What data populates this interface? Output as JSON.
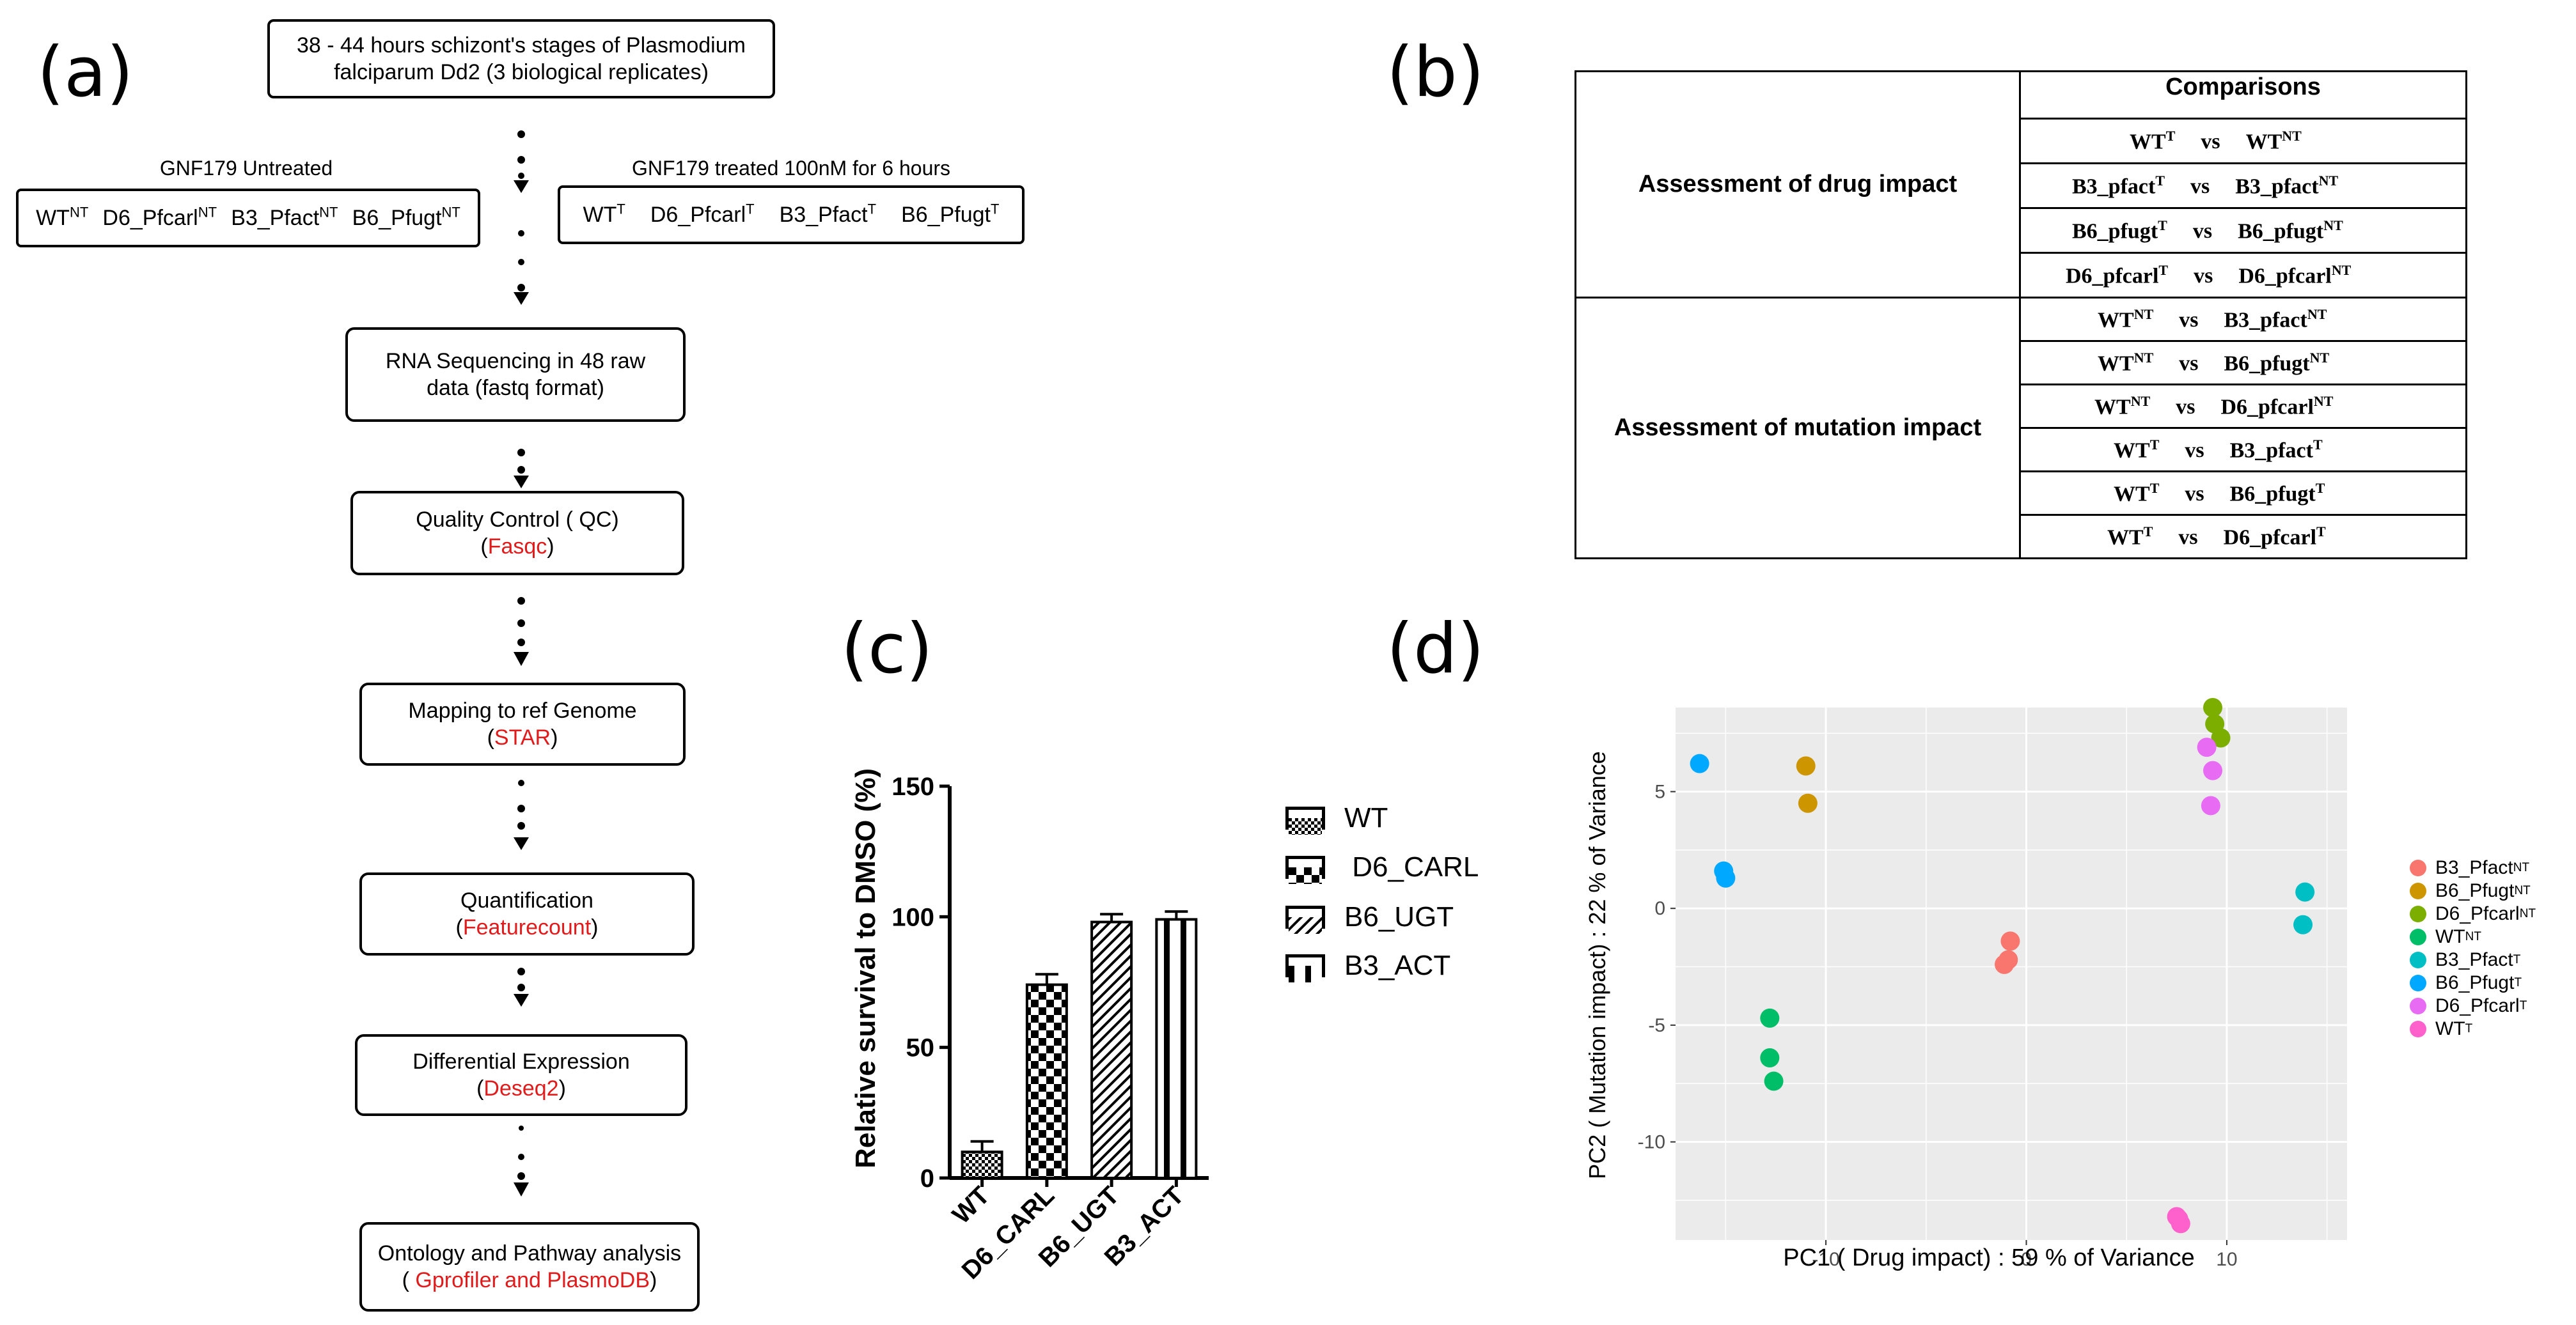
{
  "panels": {
    "a": "(a)",
    "b": "(b)",
    "c": "(c)",
    "d": "(d)"
  },
  "flow": {
    "start_line1": "38 - 44 hours schizont's stages of Plasmodium",
    "start_line2": "falciparum Dd2 (3 biological replicates)",
    "untreated_title": "GNF179 Untreated",
    "treated_title": "GNF179 treated 100nM for 6 hours",
    "untreated": [
      {
        "base": "WT",
        "sup": "NT"
      },
      {
        "base": "D6_Pfcarl",
        "sup": "NT"
      },
      {
        "base": "B3_Pfact",
        "sup": "NT"
      },
      {
        "base": "B6_Pfugt",
        "sup": "NT"
      }
    ],
    "treated": [
      {
        "base": "WT",
        "sup": "T"
      },
      {
        "base": "D6_Pfcarl",
        "sup": "T"
      },
      {
        "base": "B3_Pfact",
        "sup": "T"
      },
      {
        "base": "B6_Pfugt",
        "sup": "T"
      }
    ],
    "seq_line1": "RNA Sequencing in 48 raw",
    "seq_line2": "data (fastq format)",
    "qc_label": "Quality Control ( QC)",
    "qc_tool": "Fasqc",
    "map_label": "Mapping to ref Genome",
    "map_tool": "STAR",
    "quant_label": "Quantification",
    "quant_tool": "Featurecount",
    "de_label": "Differential Expression",
    "de_tool": "Deseq2",
    "onto_label": "Ontology and Pathway analysis",
    "onto_tool": "Gprofiler and PlasmoDB",
    "open_paren": "(",
    "open_paren_sp": "( ",
    "close_paren": ")"
  },
  "comparisons": {
    "header": "Comparisons",
    "vs": "vs",
    "drug_title": "Assessment of drug impact",
    "mutation_title": "Assessment of mutation impact",
    "drug": [
      {
        "a": "WT",
        "as": "T",
        "b": "WT",
        "bs": "NT"
      },
      {
        "a": "B3_pfact",
        "as": "T",
        "b": "B3_pfact",
        "bs": "NT"
      },
      {
        "a": "B6_pfugt",
        "as": "T",
        "b": "B6_pfugt",
        "bs": "NT"
      },
      {
        "a": "D6_pfcarl",
        "as": "T",
        "b": "D6_pfcarl",
        "bs": "NT"
      }
    ],
    "mutation": [
      {
        "a": "WT",
        "as": "NT",
        "b": "B3_pfact",
        "bs": "NT"
      },
      {
        "a": "WT",
        "as": "NT",
        "b": "B6_pfugt",
        "bs": "NT"
      },
      {
        "a": "WT",
        "as": "NT",
        "b": "D6_pfcarl",
        "bs": "NT"
      },
      {
        "a": "WT",
        "as": "T",
        "b": "B3_pfact",
        "bs": "T"
      },
      {
        "a": "WT",
        "as": "T",
        "b": "B6_pfugt",
        "bs": "T"
      },
      {
        "a": "WT",
        "as": "T",
        "b": "D6_pfcarl",
        "bs": "T"
      }
    ]
  },
  "chart_data": [
    {
      "type": "bar",
      "ylabel": "Relative survival to DMSO (%)",
      "categories": [
        "WT",
        "D6_CARL",
        "B6_UGT",
        "B3_ACT"
      ],
      "values": [
        10,
        74,
        98,
        99
      ],
      "errors": [
        4,
        4,
        3,
        3
      ],
      "ylim": [
        0,
        150
      ],
      "yticks": [
        0,
        50,
        100,
        150
      ],
      "legend": [
        "WT",
        " D6_CARL",
        "B6_UGT",
        "B3_ACT"
      ]
    },
    {
      "type": "scatter",
      "xlabel": "PC1 ( Drug impact) : 59 % of Variance",
      "ylabel": "PC2 ( Mutation impact) : 22 % of Variance",
      "xticks": [
        -10,
        0,
        10
      ],
      "yticks": [
        5,
        0,
        -5,
        -10
      ],
      "xlim": [
        -17.5,
        16
      ],
      "ylim": [
        -14.2,
        8.6
      ],
      "series": [
        {
          "name": "B3_Pfact",
          "sup": "NT",
          "color": "#F8766D",
          "points": [
            [
              -0.8,
              -1.4
            ],
            [
              -1.1,
              -2.4
            ],
            [
              -0.9,
              -2.2
            ]
          ]
        },
        {
          "name": "B6_Pfugt",
          "sup": "NT",
          "color": "#CD9600",
          "points": [
            [
              -11.0,
              6.1
            ],
            [
              -10.9,
              4.5
            ]
          ]
        },
        {
          "name": "D6_Pfcarl",
          "sup": "NT",
          "color": "#7CAE00",
          "points": [
            [
              9.3,
              8.6
            ],
            [
              9.4,
              7.9
            ],
            [
              9.7,
              7.3
            ]
          ]
        },
        {
          "name": "WT",
          "sup": "NT",
          "color": "#00BE67",
          "points": [
            [
              -12.8,
              -4.7
            ],
            [
              -12.8,
              -6.4
            ],
            [
              -12.6,
              -7.4
            ]
          ]
        },
        {
          "name": "B3_Pfact",
          "sup": "T",
          "color": "#00BFC4",
          "points": [
            [
              13.9,
              0.7
            ],
            [
              13.8,
              -0.7
            ]
          ]
        },
        {
          "name": "B6_Pfugt",
          "sup": "T",
          "color": "#00A9FF",
          "points": [
            [
              -16.3,
              6.2
            ],
            [
              -15.1,
              1.6
            ],
            [
              -15.0,
              1.3
            ]
          ]
        },
        {
          "name": "D6_Pfcarl",
          "sup": "T",
          "color": "#E76BF3",
          "points": [
            [
              9.0,
              6.9
            ],
            [
              9.3,
              5.9
            ],
            [
              9.2,
              4.4
            ]
          ]
        },
        {
          "name": "WT",
          "sup": "T",
          "color": "#FF61CC",
          "points": [
            [
              7.5,
              -13.2
            ],
            [
              7.7,
              -13.5
            ],
            [
              7.6,
              -13.3
            ]
          ]
        }
      ]
    }
  ]
}
